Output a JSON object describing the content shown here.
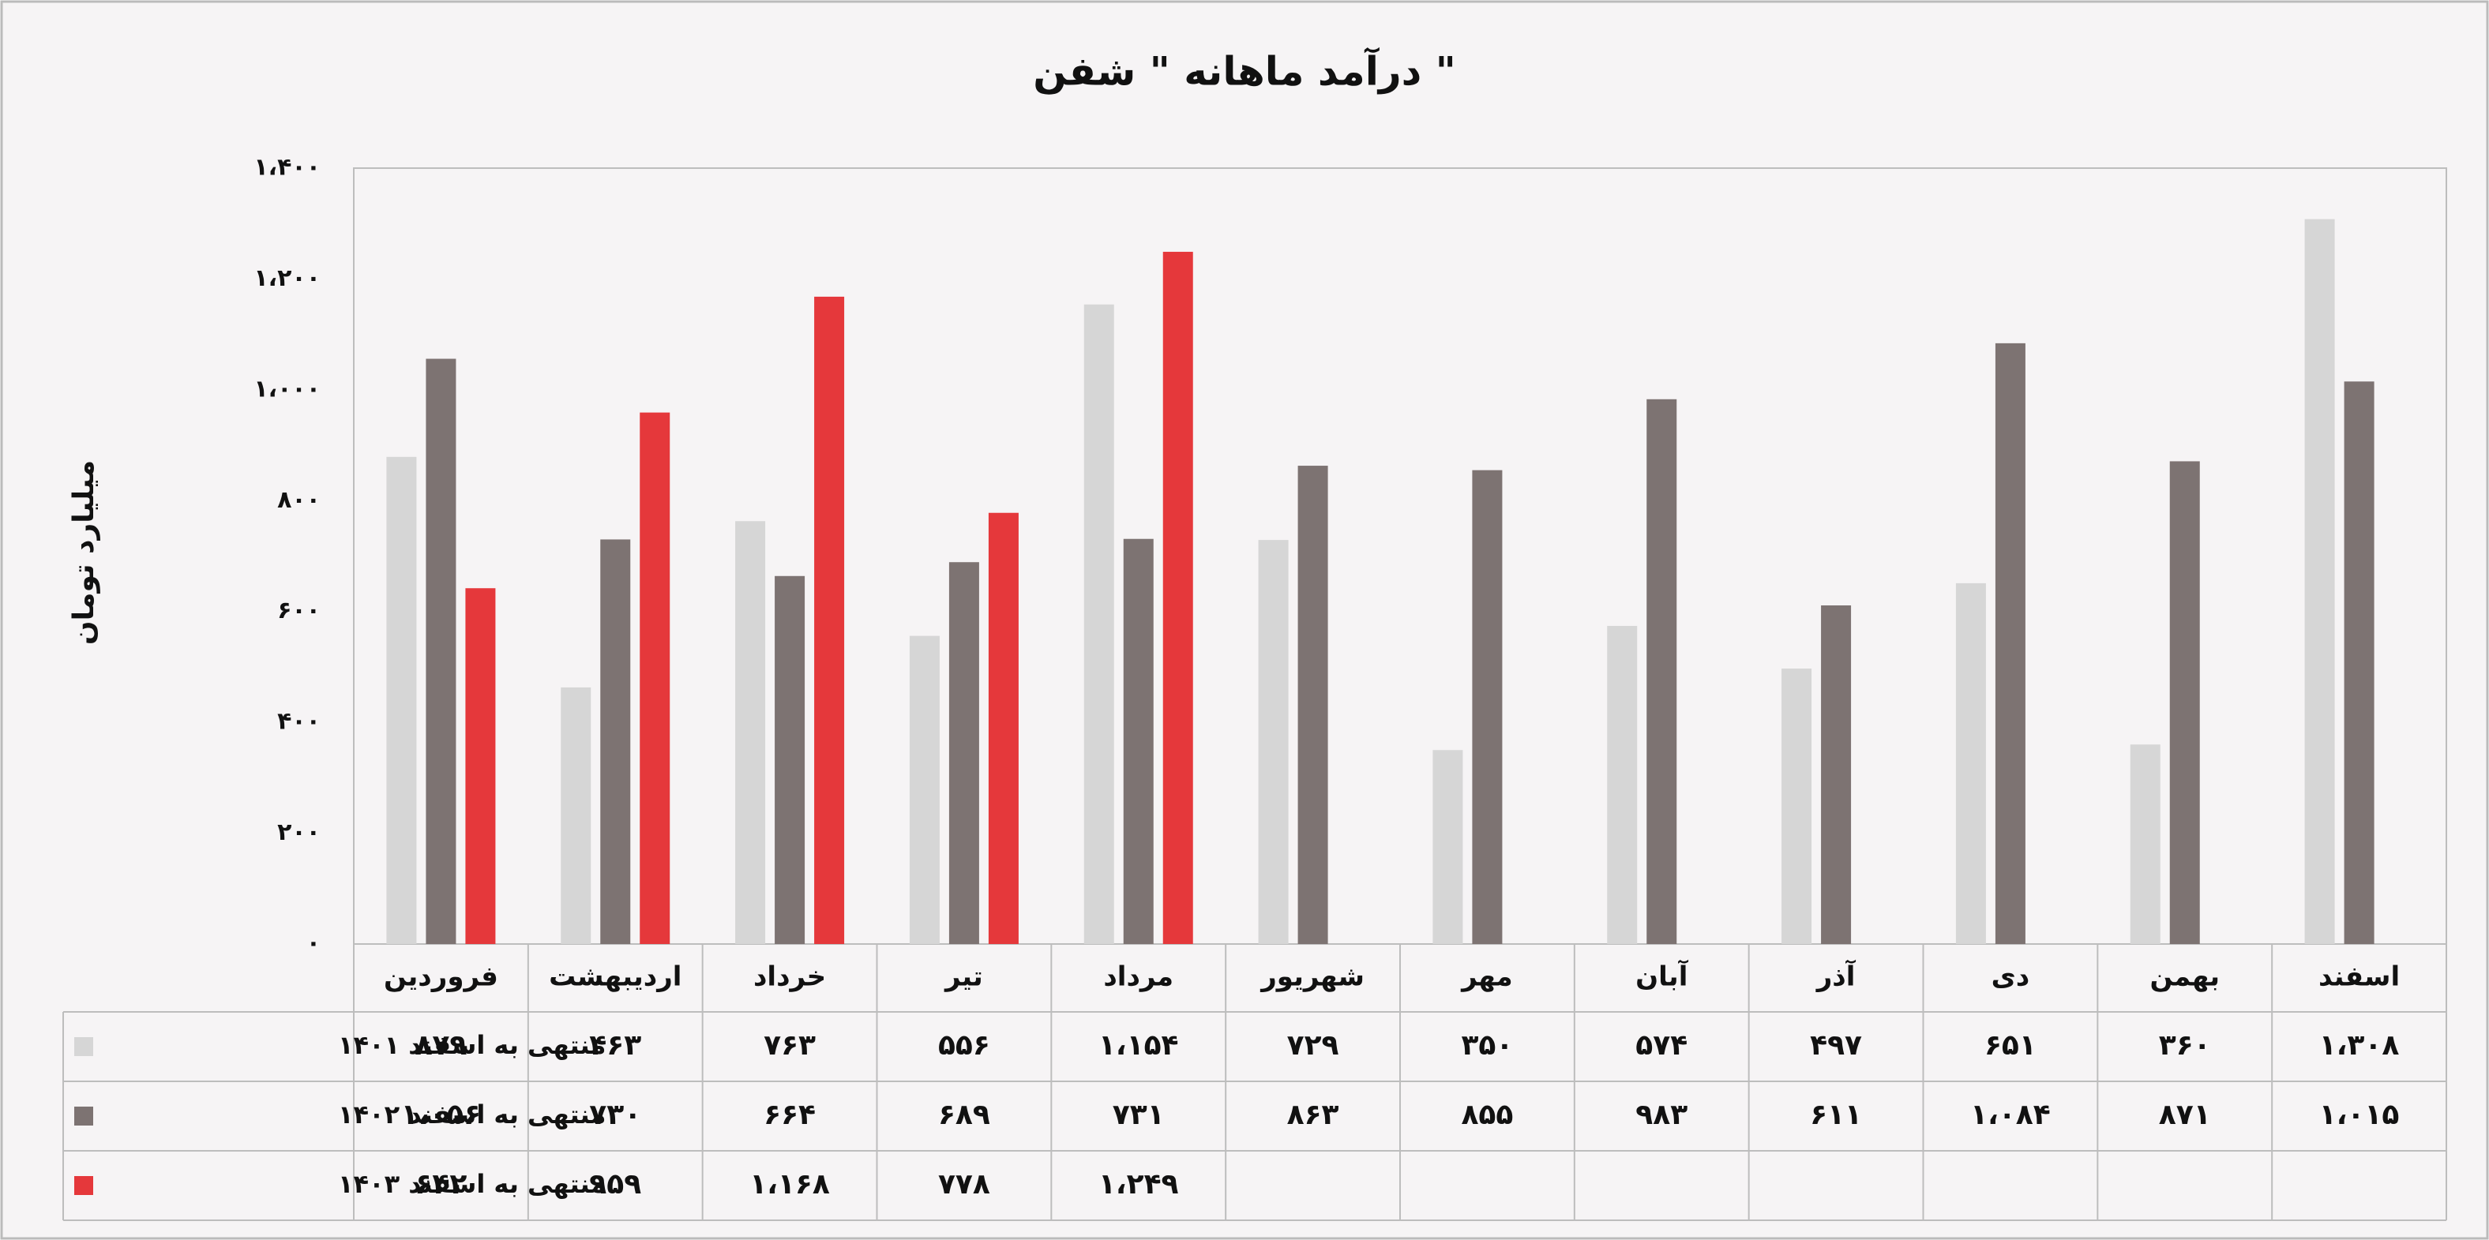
{
  "chart_data": {
    "type": "bar",
    "title": "درآمد ماهانه \" شفن \"",
    "y_label": "میلیارد تومان",
    "categories": [
      "فروردین",
      "اردیبهشت",
      "خرداد",
      "تیر",
      "مرداد",
      "شهریور",
      "مهر",
      "آبان",
      "آذر",
      "دی",
      "بهمن",
      "اسفند"
    ],
    "series": [
      {
        "name": "منتهی به اسفند ۱۴۰۱",
        "color": "#d6d6d6",
        "values": [
          879,
          463,
          763,
          556,
          1154,
          729,
          350,
          574,
          497,
          651,
          360,
          1308
        ],
        "value_labels": [
          "۸۷۹",
          "۴۶۳",
          "۷۶۳",
          "۵۵۶",
          "۱،۱۵۴",
          "۷۲۹",
          "۳۵۰",
          "۵۷۴",
          "۴۹۷",
          "۶۵۱",
          "۳۶۰",
          "۱،۳۰۸"
        ]
      },
      {
        "name": "منتهی به اسفند ۱۴۰۲",
        "color": "#7d7372",
        "values": [
          1056,
          730,
          664,
          689,
          731,
          863,
          855,
          983,
          611,
          1084,
          871,
          1015
        ],
        "value_labels": [
          "۱،۰۵۶",
          "۷۳۰",
          "۶۶۴",
          "۶۸۹",
          "۷۳۱",
          "۸۶۳",
          "۸۵۵",
          "۹۸۳",
          "۶۱۱",
          "۱،۰۸۴",
          "۸۷۱",
          "۱،۰۱۵"
        ]
      },
      {
        "name": "منتهی به اسفند ۱۴۰۳",
        "color": "#e5383b",
        "values": [
          642,
          959,
          1168,
          778,
          1249,
          null,
          null,
          null,
          null,
          null,
          null,
          null
        ],
        "value_labels": [
          "۶۴۲",
          "۹۵۹",
          "۱،۱۶۸",
          "۷۷۸",
          "۱،۲۴۹",
          null,
          null,
          null,
          null,
          null,
          null,
          null
        ]
      }
    ],
    "ylim": [
      0,
      1400
    ],
    "yticks": [
      {
        "value": 0,
        "label": "۰"
      },
      {
        "value": 200,
        "label": "۲۰۰"
      },
      {
        "value": 400,
        "label": "۴۰۰"
      },
      {
        "value": 600,
        "label": "۶۰۰"
      },
      {
        "value": 800,
        "label": "۸۰۰"
      },
      {
        "value": 1000,
        "label": "۱،۰۰۰"
      },
      {
        "value": 1200,
        "label": "۱،۲۰۰"
      },
      {
        "value": 1400,
        "label": "۱،۴۰۰"
      }
    ],
    "grid": false
  }
}
